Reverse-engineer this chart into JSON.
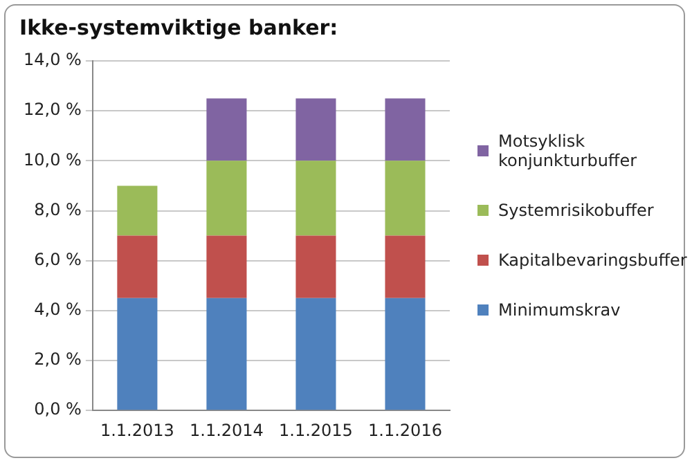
{
  "chart_data": {
    "type": "bar",
    "title": "Ikke-systemviktige banker:",
    "categories": [
      "1.1.2013",
      "1.1.2014",
      "1.1.2015",
      "1.1.2016"
    ],
    "stacked": true,
    "series": [
      {
        "name": "Minimumskrav",
        "color": "#4f81bd",
        "values": [
          4.5,
          4.5,
          4.5,
          4.5
        ]
      },
      {
        "name": "Kapitalbevaringsbuffer",
        "color": "#c0504d",
        "values": [
          2.5,
          2.5,
          2.5,
          2.5
        ]
      },
      {
        "name": "Systemrisikobuffer",
        "color": "#9bbb59",
        "values": [
          2,
          3,
          3,
          3
        ]
      },
      {
        "name": "Motsyklisk konjunkturbuffer",
        "color": "#8064a2",
        "values": [
          null,
          2.5,
          2.5,
          2.5
        ]
      }
    ],
    "ylim": [
      0,
      14
    ],
    "yticks": [
      {
        "value": 0,
        "label": "0,0 %"
      },
      {
        "value": 2,
        "label": "2,0 %"
      },
      {
        "value": 4,
        "label": "4,0 %"
      },
      {
        "value": 6,
        "label": "6,0 %"
      },
      {
        "value": 8,
        "label": "8,0 %"
      },
      {
        "value": 10,
        "label": "10,0 %"
      },
      {
        "value": 12,
        "label": "12,0 %"
      },
      {
        "value": 14,
        "label": "14,0 %"
      }
    ],
    "grid": "y",
    "legend": "right"
  }
}
